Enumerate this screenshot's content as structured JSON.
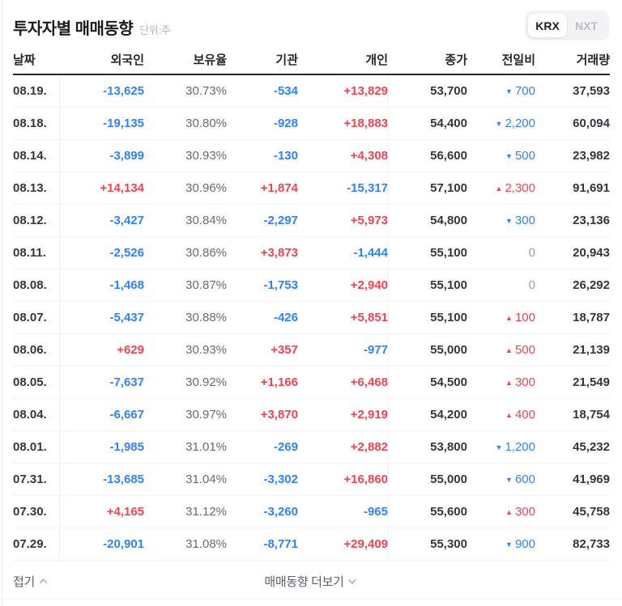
{
  "header": {
    "title": "투자자별 매매동향",
    "unit": "단위:주",
    "toggle": {
      "krx": "KRX",
      "nxt": "NXT",
      "active": "KRX"
    }
  },
  "columns": {
    "date": "날짜",
    "foreigner": "외국인",
    "ratio": "보유율",
    "institution": "기관",
    "individual": "개인",
    "close": "종가",
    "change": "전일비",
    "volume": "거래량"
  },
  "colors": {
    "positive": "#f04452",
    "negative": "#3182f6",
    "flat": "#9aa0a8",
    "text_dark": "#33363c"
  },
  "rows": [
    {
      "date": "08.19.",
      "foreigner": "-13,625",
      "ratio": "30.73%",
      "institution": "-534",
      "individual": "+13,829",
      "close": "53,700",
      "change": {
        "dir": "down",
        "value": "700"
      },
      "volume": "37,593"
    },
    {
      "date": "08.18.",
      "foreigner": "-19,135",
      "ratio": "30.80%",
      "institution": "-928",
      "individual": "+18,883",
      "close": "54,400",
      "change": {
        "dir": "down",
        "value": "2,200"
      },
      "volume": "60,094"
    },
    {
      "date": "08.14.",
      "foreigner": "-3,899",
      "ratio": "30.93%",
      "institution": "-130",
      "individual": "+4,308",
      "close": "56,600",
      "change": {
        "dir": "down",
        "value": "500"
      },
      "volume": "23,982"
    },
    {
      "date": "08.13.",
      "foreigner": "+14,134",
      "ratio": "30.96%",
      "institution": "+1,874",
      "individual": "-15,317",
      "close": "57,100",
      "change": {
        "dir": "up",
        "value": "2,300"
      },
      "volume": "91,691"
    },
    {
      "date": "08.12.",
      "foreigner": "-3,427",
      "ratio": "30.84%",
      "institution": "-2,297",
      "individual": "+5,973",
      "close": "54,800",
      "change": {
        "dir": "down",
        "value": "300"
      },
      "volume": "23,136"
    },
    {
      "date": "08.11.",
      "foreigner": "-2,526",
      "ratio": "30.86%",
      "institution": "+3,873",
      "individual": "-1,444",
      "close": "55,100",
      "change": {
        "dir": "flat",
        "value": "0"
      },
      "volume": "20,943"
    },
    {
      "date": "08.08.",
      "foreigner": "-1,468",
      "ratio": "30.87%",
      "institution": "-1,753",
      "individual": "+2,940",
      "close": "55,100",
      "change": {
        "dir": "flat",
        "value": "0"
      },
      "volume": "26,292"
    },
    {
      "date": "08.07.",
      "foreigner": "-5,437",
      "ratio": "30.88%",
      "institution": "-426",
      "individual": "+5,851",
      "close": "55,100",
      "change": {
        "dir": "up",
        "value": "100"
      },
      "volume": "18,787"
    },
    {
      "date": "08.06.",
      "foreigner": "+629",
      "ratio": "30.93%",
      "institution": "+357",
      "individual": "-977",
      "close": "55,000",
      "change": {
        "dir": "up",
        "value": "500"
      },
      "volume": "21,139"
    },
    {
      "date": "08.05.",
      "foreigner": "-7,637",
      "ratio": "30.92%",
      "institution": "+1,166",
      "individual": "+6,468",
      "close": "54,500",
      "change": {
        "dir": "up",
        "value": "300"
      },
      "volume": "21,549"
    },
    {
      "date": "08.04.",
      "foreigner": "-6,667",
      "ratio": "30.97%",
      "institution": "+3,870",
      "individual": "+2,919",
      "close": "54,200",
      "change": {
        "dir": "up",
        "value": "400"
      },
      "volume": "18,754"
    },
    {
      "date": "08.01.",
      "foreigner": "-1,985",
      "ratio": "31.01%",
      "institution": "-269",
      "individual": "+2,882",
      "close": "53,800",
      "change": {
        "dir": "down",
        "value": "1,200"
      },
      "volume": "45,232"
    },
    {
      "date": "07.31.",
      "foreigner": "-13,685",
      "ratio": "31.04%",
      "institution": "-3,302",
      "individual": "+16,860",
      "close": "55,000",
      "change": {
        "dir": "down",
        "value": "600"
      },
      "volume": "41,969"
    },
    {
      "date": "07.30.",
      "foreigner": "+4,165",
      "ratio": "31.12%",
      "institution": "-3,260",
      "individual": "-965",
      "close": "55,600",
      "change": {
        "dir": "up",
        "value": "300"
      },
      "volume": "45,758"
    },
    {
      "date": "07.29.",
      "foreigner": "-20,901",
      "ratio": "31.08%",
      "institution": "-8,771",
      "individual": "+29,409",
      "close": "55,300",
      "change": {
        "dir": "down",
        "value": "900"
      },
      "volume": "82,733"
    }
  ],
  "footer": {
    "collapse": "접기",
    "more": "매매동향 더보기"
  }
}
